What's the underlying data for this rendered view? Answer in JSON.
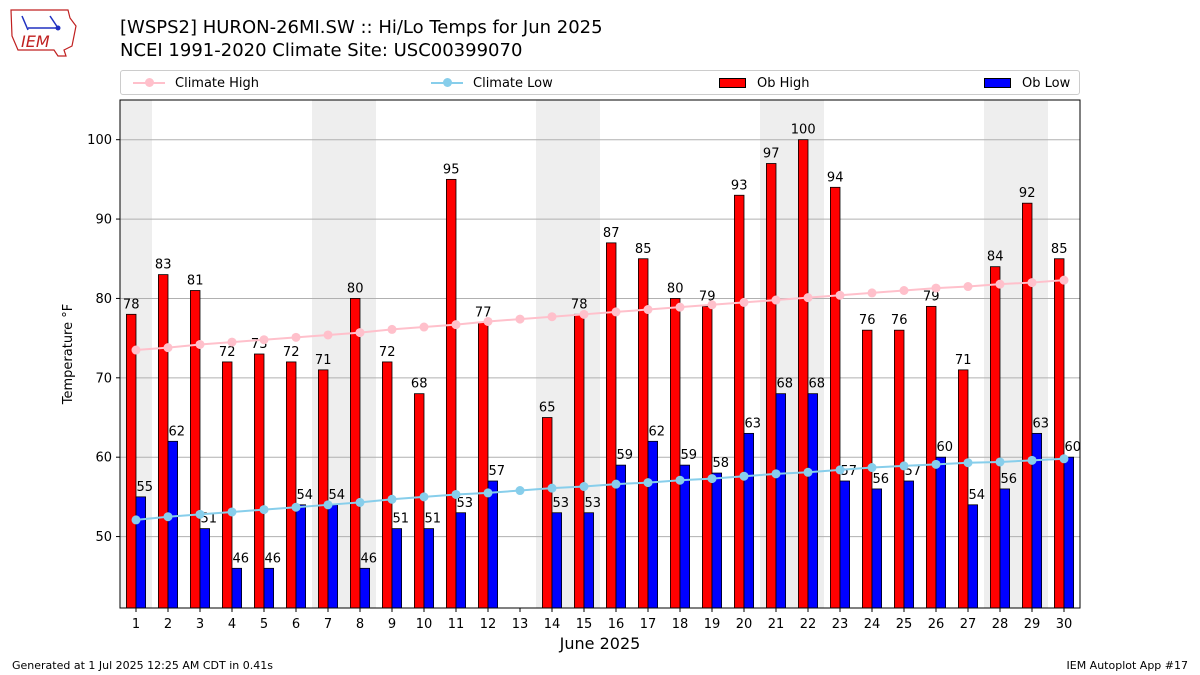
{
  "logo_text": "IEM",
  "title_line1": "[WSPS2] HURON-26MI.SW :: Hi/Lo Temps for Jun 2025",
  "title_line2": "NCEI 1991-2020 Climate Site: USC00399070",
  "footer_left": "Generated at 1 Jul 2025 12:25 AM CDT in 0.41s",
  "footer_right": "IEM Autoplot App #17",
  "colors": {
    "ob_high": "#ff0000",
    "ob_low": "#0000ff",
    "climate_high": "#ffc0cb",
    "climate_low": "#87ceeb",
    "weekend_shade": "#eeeeee",
    "grid": "#b0b0b0"
  },
  "chart_data": {
    "type": "bar",
    "xlabel": "June 2025",
    "ylabel": "Temperature °F",
    "ylim": [
      41,
      105
    ],
    "xlim": [
      0.5,
      30.5
    ],
    "y_ticks": [
      50,
      60,
      70,
      80,
      90,
      100
    ],
    "grid": "horizontal",
    "legend_position": "top",
    "categories": [
      "1",
      "2",
      "3",
      "4",
      "5",
      "6",
      "7",
      "8",
      "9",
      "10",
      "11",
      "12",
      "13",
      "14",
      "15",
      "16",
      "17",
      "18",
      "19",
      "20",
      "21",
      "22",
      "23",
      "24",
      "25",
      "26",
      "27",
      "28",
      "29",
      "30"
    ],
    "weekend_shading": [
      [
        1,
        1
      ],
      [
        7,
        8
      ],
      [
        14,
        15
      ],
      [
        21,
        22
      ],
      [
        28,
        29
      ]
    ],
    "series": [
      {
        "name": "Ob High",
        "type": "bar",
        "values": [
          78,
          83,
          81,
          72,
          73,
          72,
          71,
          80,
          72,
          68,
          95,
          77,
          null,
          65,
          78,
          87,
          85,
          80,
          79,
          93,
          97,
          100,
          94,
          76,
          76,
          79,
          71,
          84,
          92,
          85
        ]
      },
      {
        "name": "Ob Low",
        "type": "bar",
        "values": [
          55,
          62,
          51,
          46,
          46,
          54,
          54,
          46,
          51,
          51,
          53,
          57,
          null,
          53,
          53,
          59,
          62,
          59,
          58,
          63,
          68,
          68,
          57,
          56,
          57,
          60,
          54,
          56,
          63,
          60
        ]
      },
      {
        "name": "Climate High",
        "type": "line",
        "values": [
          73.5,
          73.8,
          74.2,
          74.5,
          74.8,
          75.1,
          75.4,
          75.7,
          76.1,
          76.4,
          76.7,
          77.1,
          77.4,
          77.7,
          78.0,
          78.3,
          78.6,
          78.9,
          79.2,
          79.5,
          79.8,
          80.1,
          80.4,
          80.7,
          81.0,
          81.3,
          81.5,
          81.8,
          82.0,
          82.3
        ]
      },
      {
        "name": "Climate Low",
        "type": "line",
        "values": [
          52.1,
          52.5,
          52.8,
          53.1,
          53.4,
          53.7,
          54.0,
          54.3,
          54.7,
          55.0,
          55.3,
          55.5,
          55.8,
          56.1,
          56.3,
          56.6,
          56.8,
          57.1,
          57.3,
          57.6,
          57.9,
          58.1,
          58.4,
          58.7,
          58.9,
          59.1,
          59.3,
          59.4,
          59.6,
          59.8
        ]
      }
    ]
  }
}
